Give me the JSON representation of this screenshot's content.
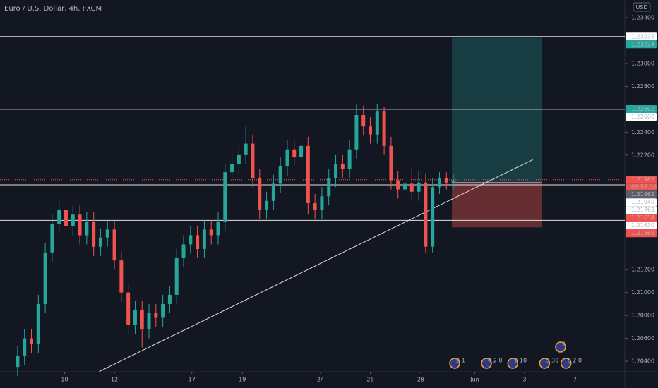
{
  "chart_data": {
    "type": "candlestick",
    "title": "Euro / U.S. Dollar, 4h, FXCM",
    "currency": "USD",
    "up_color": "#26a69a",
    "down_color": "#ef5350",
    "ylim": [
      1.20308,
      1.23554
    ],
    "xlim": [
      -0.5,
      87.8
    ],
    "yticks": [
      {
        "value": 1.234,
        "label": "1.23400"
      },
      {
        "value": 1.23,
        "label": "1.23000"
      },
      {
        "value": 1.228,
        "label": "1.22800"
      },
      {
        "value": 1.224,
        "label": "1.22400"
      },
      {
        "value": 1.222,
        "label": "1.22200"
      },
      {
        "value": 1.212,
        "label": "1.21200"
      },
      {
        "value": 1.21,
        "label": "1.21000"
      },
      {
        "value": 1.208,
        "label": "1.20800"
      },
      {
        "value": 1.206,
        "label": "1.20600"
      },
      {
        "value": 1.204,
        "label": "1.20400"
      }
    ],
    "xticks": [
      {
        "value": 6.8,
        "label": "10"
      },
      {
        "value": 14,
        "label": "12"
      },
      {
        "value": 25.2,
        "label": "17"
      },
      {
        "value": 32.5,
        "label": "19"
      },
      {
        "value": 43.8,
        "label": "24"
      },
      {
        "value": 51,
        "label": "26"
      },
      {
        "value": 58.3,
        "label": "28"
      },
      {
        "value": 66.1,
        "label": "Jun"
      },
      {
        "value": 73.3,
        "label": "3"
      },
      {
        "value": 80.6,
        "label": "7"
      }
    ],
    "ohlc": {
      "open": [
        1.2035,
        1.2045,
        1.206,
        1.2055,
        1.209,
        1.2135,
        1.216,
        1.2172,
        1.2158,
        1.2168,
        1.215,
        1.2162,
        1.214,
        1.2148,
        1.2155,
        1.2128,
        1.21,
        1.2072,
        1.2085,
        1.2068,
        1.2082,
        1.2078,
        1.209,
        1.2098,
        1.213,
        1.2142,
        1.215,
        1.2138,
        1.2155,
        1.215,
        1.2162,
        1.2205,
        1.2212,
        1.222,
        1.223,
        1.22,
        1.2172,
        1.218,
        1.2195,
        1.221,
        1.2225,
        1.2218,
        1.2228,
        1.2178,
        1.2172,
        1.2184,
        1.22,
        1.2212,
        1.2208,
        1.2225,
        1.2255,
        1.2245,
        1.2238,
        1.2258,
        1.2228,
        1.2198,
        1.219,
        1.2195,
        1.2188,
        1.2196,
        1.214,
        1.2192,
        1.22,
        1.2196
      ],
      "high": [
        1.2053,
        1.2068,
        1.2068,
        1.2098,
        1.2143,
        1.2168,
        1.218,
        1.218,
        1.2176,
        1.2176,
        1.217,
        1.217,
        1.2156,
        1.2163,
        1.2163,
        1.2136,
        1.2108,
        1.2093,
        1.2093,
        1.209,
        1.209,
        1.2098,
        1.2106,
        1.2138,
        1.215,
        1.2158,
        1.2158,
        1.2163,
        1.2163,
        1.217,
        1.2213,
        1.222,
        1.2228,
        1.2245,
        1.2238,
        1.2208,
        1.2188,
        1.2203,
        1.2218,
        1.2233,
        1.2233,
        1.224,
        1.2236,
        1.2186,
        1.2192,
        1.2208,
        1.222,
        1.222,
        1.2233,
        1.2265,
        1.2263,
        1.2253,
        1.2265,
        1.2262,
        1.2236,
        1.2206,
        1.221,
        1.2208,
        1.2206,
        1.2204,
        1.22,
        1.2205,
        1.2205,
        1.2203
      ],
      "low": [
        1.2027,
        1.2037,
        1.2047,
        1.2047,
        1.2082,
        1.2127,
        1.2152,
        1.215,
        1.215,
        1.2142,
        1.2142,
        1.2132,
        1.2132,
        1.214,
        1.212,
        1.2092,
        1.2064,
        1.2064,
        1.2052,
        1.206,
        1.207,
        1.207,
        1.2082,
        1.209,
        1.2122,
        1.2134,
        1.213,
        1.213,
        1.2142,
        1.2142,
        1.2154,
        1.2197,
        1.2204,
        1.2212,
        1.2192,
        1.2164,
        1.2164,
        1.2172,
        1.2187,
        1.2202,
        1.221,
        1.221,
        1.2168,
        1.2164,
        1.2164,
        1.2176,
        1.2192,
        1.22,
        1.22,
        1.2217,
        1.2237,
        1.223,
        1.223,
        1.222,
        1.219,
        1.2182,
        1.2182,
        1.218,
        1.218,
        1.2135,
        1.2135,
        1.2186,
        1.219,
        1.219
      ],
      "close": [
        1.2045,
        1.206,
        1.2055,
        1.209,
        1.2135,
        1.216,
        1.2172,
        1.2158,
        1.2168,
        1.215,
        1.2162,
        1.214,
        1.2148,
        1.2155,
        1.2128,
        1.21,
        1.2072,
        1.2085,
        1.2068,
        1.2082,
        1.2078,
        1.209,
        1.2098,
        1.213,
        1.2142,
        1.215,
        1.2138,
        1.2155,
        1.215,
        1.2162,
        1.2205,
        1.2212,
        1.222,
        1.223,
        1.22,
        1.2172,
        1.218,
        1.2195,
        1.221,
        1.2225,
        1.2218,
        1.2228,
        1.2178,
        1.2172,
        1.2184,
        1.22,
        1.2212,
        1.2208,
        1.2225,
        1.2255,
        1.2245,
        1.2238,
        1.2258,
        1.2228,
        1.2198,
        1.219,
        1.2195,
        1.2188,
        1.2196,
        1.214,
        1.2192,
        1.22,
        1.2196,
        1.2198
      ]
    },
    "price_labels": [
      {
        "value": 1.23235,
        "label": "1.23235",
        "color": "#ffffff",
        "line": true
      },
      {
        "value": 1.23224,
        "label": "1.23224",
        "color": "#26a69a",
        "line": false
      },
      {
        "value": 1.22602,
        "label": "1.22602",
        "color": "#26a69a",
        "line": false
      },
      {
        "value": 1.226,
        "label": "1.22600",
        "color": "#ffffff",
        "line": true
      },
      {
        "value": 1.21985,
        "label": "1.21985",
        "color": "#ef5350",
        "line": false
      },
      {
        "value": 1.21962,
        "label": "1.21962",
        "color": "#5d606b",
        "line": false
      },
      {
        "value": 1.2194,
        "label": "1.21940",
        "color": "#ffffff",
        "line": true
      },
      {
        "value": 1.21763,
        "label": "1.21763",
        "color": "#ffffff",
        "line": false
      },
      {
        "value": 1.21654,
        "label": "1.21654",
        "color": "#ef5350",
        "line": false
      },
      {
        "value": 1.2163,
        "label": "1.21630",
        "color": "#ffffff",
        "line": true
      },
      {
        "value": 1.21569,
        "label": "1.21569",
        "color": "#ef5350",
        "line": false
      }
    ],
    "last_price": 1.21985,
    "countdown": "03:57:00",
    "position": {
      "entry": 1.21962,
      "target": 1.23224,
      "stop": 1.21569,
      "x": [
        62.8,
        75.8
      ]
    },
    "trendline": [
      [
        11.8,
        1.2031
      ],
      [
        74.5,
        1.2216
      ]
    ],
    "events": [
      {
        "x": 63.2,
        "label": "2 1",
        "row": 0
      },
      {
        "x": 67.8,
        "label": "4 2 0",
        "row": 0
      },
      {
        "x": 71.6,
        "label": "2 10",
        "row": 0
      },
      {
        "x": 76.2,
        "label": "3 30",
        "row": 0
      },
      {
        "x": 79.3,
        "label": "8 2 0",
        "row": 0
      },
      {
        "x": 78.5,
        "label": "2",
        "row": 1
      }
    ]
  }
}
